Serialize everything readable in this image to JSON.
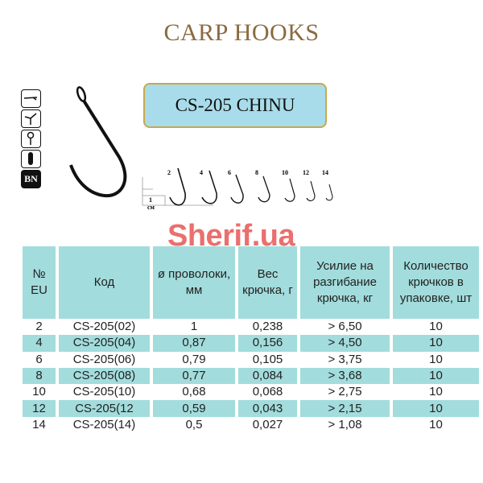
{
  "title": "CARP HOOKS",
  "model": "CS-205 CHINU",
  "icons": [
    "barbed-point-icon",
    "straight-point-icon",
    "ringed-eye-icon",
    "ring-shank-icon",
    "bn-finish-icon"
  ],
  "finish_label": "BN",
  "scale_label": {
    "value": "1",
    "unit": "см"
  },
  "hook_sizes": [
    "2",
    "4",
    "6",
    "8",
    "10",
    "12",
    "14"
  ],
  "watermark": "Sherif.ua",
  "table": {
    "headers": [
      "№ EU",
      "Код",
      "ø проволоки, мм",
      "Вес крючка, г",
      "Усилие на разгибание крючка, кг",
      "Количество крючков в упаковке, шт"
    ],
    "rows": [
      [
        "2",
        "CS-205(02)",
        "1",
        "0,238",
        "> 6,50",
        "10"
      ],
      [
        "4",
        "CS-205(04)",
        "0,87",
        "0,156",
        "> 4,50",
        "10"
      ],
      [
        "6",
        "CS-205(06)",
        "0,79",
        "0,105",
        "> 3,75",
        "10"
      ],
      [
        "8",
        "CS-205(08)",
        "0,77",
        "0,084",
        "> 3,68",
        "10"
      ],
      [
        "10",
        "CS-205(10)",
        "0,68",
        "0,068",
        "> 2,75",
        "10"
      ],
      [
        "12",
        "CS-205(12",
        "0,59",
        "0,043",
        "> 2,15",
        "10"
      ],
      [
        "14",
        "CS-205(14)",
        "0,5",
        "0,027",
        "> 1,08",
        "10"
      ]
    ]
  },
  "colors": {
    "title": "#8a6a40",
    "row_highlight": "#a3dcdc",
    "label_box": "#a8dcea",
    "label_border": "#c9a84a",
    "watermark": "#e8605e"
  }
}
